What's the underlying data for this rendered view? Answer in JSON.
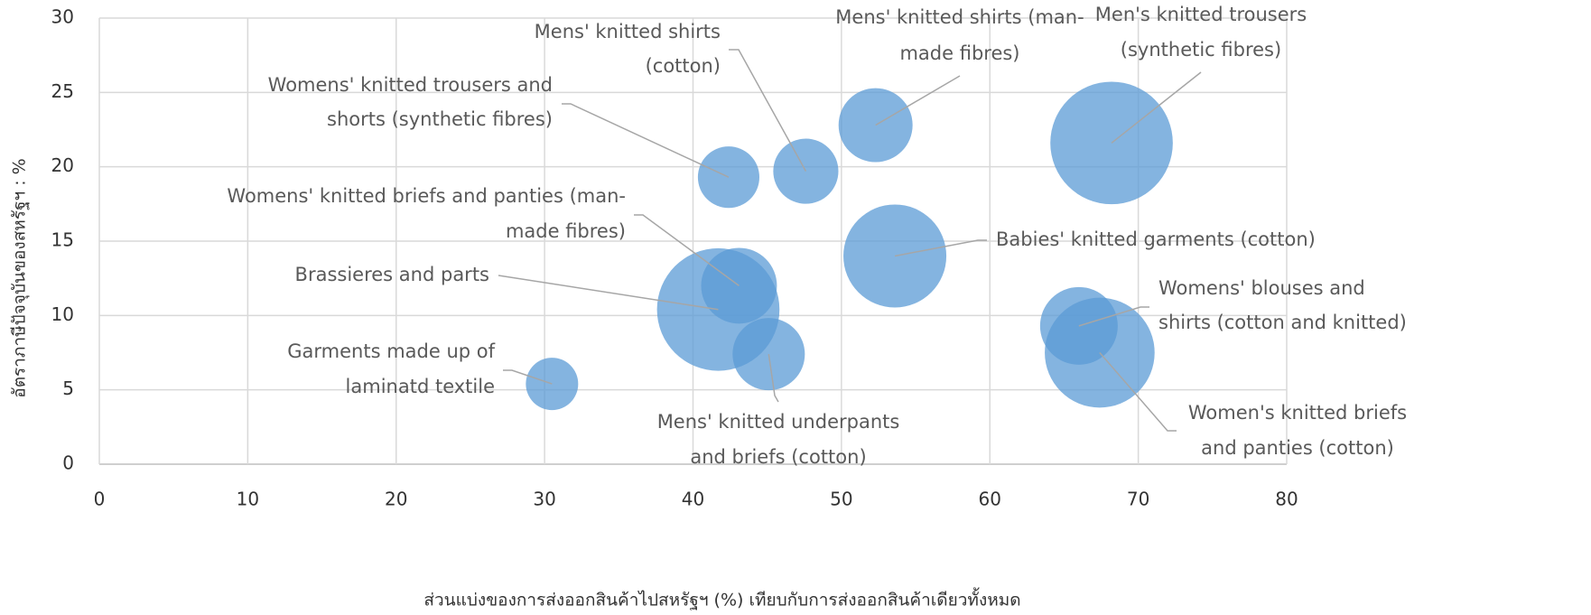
{
  "chart_data": {
    "type": "bubble",
    "x_label": "ส่วนแบ่งของการส่งออกสินค้าไปสหรัฐฯ (%) เทียบกับการส่งออกสินค้าเดียวทั้งหมด",
    "y_label": "อัตราภาษีปัจจุบันของสหรัฐฯ : %",
    "x": [
      30.5,
      41.7,
      43.1,
      45.1,
      42.4,
      47.6,
      52.3,
      53.6,
      68.2,
      66.0,
      67.4
    ],
    "values": [
      5.4,
      10.4,
      12.0,
      7.4,
      19.3,
      19.7,
      22.8,
      14.0,
      21.6,
      9.3,
      7.5
    ],
    "sizes": [
      8.4,
      46,
      17.6,
      16,
      11.6,
      13,
      16.8,
      32.5,
      46,
      18.5,
      37
    ],
    "labels": [
      [
        "Garments made up of",
        "laminatd textile"
      ],
      [
        "Brassieres and parts"
      ],
      [
        "Womens' knitted briefs and panties (man-",
        "made fibres)"
      ],
      [
        "Mens'  knitted underpants",
        "and briefs (cotton)"
      ],
      [
        "Womens' knitted trousers and",
        "shorts (synthetic fibres)"
      ],
      [
        "Mens' knitted shirts",
        "(cotton)"
      ],
      [
        "Mens' knitted shirts (man-",
        "made fibres)"
      ],
      [
        "Babies' knitted garments (cotton)"
      ],
      [
        "Men's knitted trousers",
        "(synthetic fibres)"
      ],
      [
        "Womens' blouses and",
        "shirts (cotton and knitted)"
      ],
      [
        "Women's knitted briefs",
        "and panties (cotton)"
      ]
    ],
    "color": "#5b9bd5",
    "xlim": [
      0,
      80
    ],
    "xticks": [
      0,
      10,
      20,
      30,
      40,
      50,
      60,
      70,
      80
    ],
    "ylim": [
      0,
      30
    ],
    "yticks": [
      0,
      5,
      10,
      15,
      20,
      25,
      30
    ],
    "grid": true
  }
}
